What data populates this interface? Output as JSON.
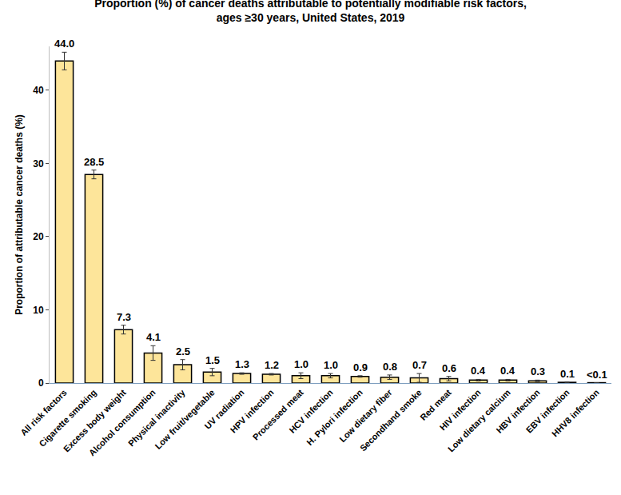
{
  "chart_data": {
    "type": "bar",
    "title": [
      "Proportion (%) of cancer deaths attributable to potentially modifiable risk factors,",
      "ages ≥30 years, United States, 2019"
    ],
    "y_label": "Proportion of attributable cancer deaths (%)",
    "categories": [
      "All risk factors",
      "Cigarette smoking",
      "Excess body weight",
      "Alcohol consumption",
      "Physical inactivity",
      "Low fruit/vegetable",
      "UV radiation",
      "HPV infection",
      "Processed meat",
      "HCV infection",
      "H. Pylori infection",
      "Low dietary fiber",
      "Secondhand smoke",
      "Red meat",
      "HIV infection",
      "Low dietary calcium",
      "HBV infection",
      "EBV infection",
      "HHV8 infection"
    ],
    "values": [
      44.0,
      28.5,
      7.3,
      4.1,
      2.5,
      1.5,
      1.3,
      1.2,
      1.0,
      1.0,
      0.9,
      0.8,
      0.7,
      0.6,
      0.4,
      0.4,
      0.3,
      0.1,
      0.05
    ],
    "value_labels": [
      "44.0",
      "28.5",
      "7.3",
      "4.1",
      "2.5",
      "1.5",
      "1.3",
      "1.2",
      "1.0",
      "1.0",
      "0.9",
      "0.8",
      "0.7",
      "0.6",
      "0.4",
      "0.4",
      "0.3",
      "0.1",
      "<0.1"
    ],
    "errors": [
      1.2,
      0.6,
      0.6,
      1.0,
      0.7,
      0.5,
      0.1,
      0.1,
      0.4,
      0.3,
      0.1,
      0.3,
      0.6,
      0.3,
      0.1,
      0.1,
      0.1,
      0.05,
      0
    ],
    "color": "#fde59a",
    "ylim": [
      0,
      46
    ],
    "yticks": [
      0,
      10,
      20,
      30,
      40
    ],
    "grid": false,
    "data_labels": true
  }
}
